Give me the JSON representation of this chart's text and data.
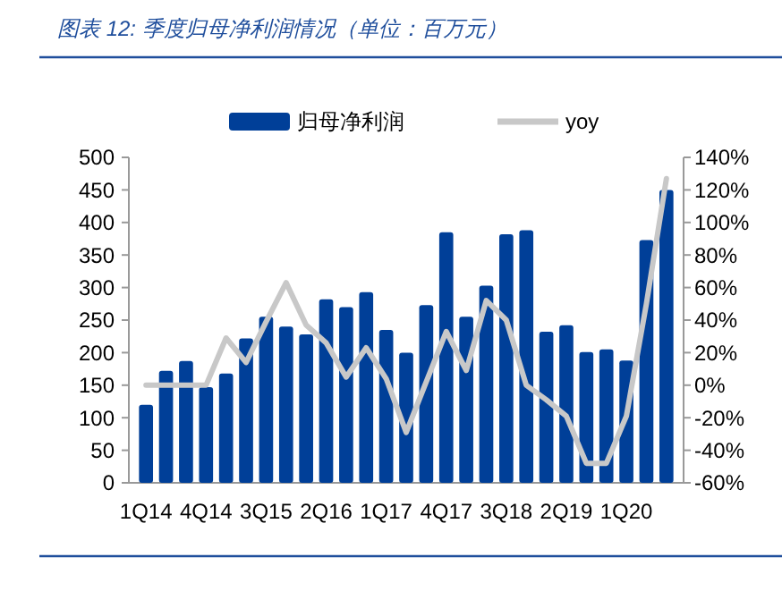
{
  "chart_data": {
    "type": "bar",
    "title": "图表 12: 季度归母净利润情况（单位：百万元）",
    "categories": [
      "1Q14",
      null,
      null,
      "4Q14",
      null,
      null,
      "3Q15",
      null,
      null,
      "2Q16",
      null,
      null,
      "1Q17",
      null,
      null,
      "4Q17",
      null,
      null,
      "3Q18",
      null,
      null,
      "2Q19",
      null,
      null,
      "1Q20",
      null,
      null
    ],
    "series": [
      {
        "name": "归母净利润",
        "color": "#003f98",
        "values": [
          120,
          172,
          187,
          147,
          168,
          222,
          255,
          240,
          228,
          282,
          270,
          293,
          235,
          200,
          273,
          385,
          255,
          303,
          382,
          388,
          232,
          242,
          201,
          205,
          188,
          373,
          450
        ]
      },
      {
        "name": "yoy",
        "type": "line",
        "axis": "y2",
        "color": "#c8c8c8",
        "values": [
          0,
          0,
          0,
          0,
          29,
          14,
          39,
          63,
          37,
          26,
          5,
          23,
          4,
          -29,
          2,
          33,
          9,
          52,
          40,
          0,
          -9,
          -19,
          -48,
          -48,
          -19,
          50,
          127
        ]
      }
    ],
    "ylim": [
      0,
      500
    ],
    "yticks": [
      0,
      50,
      100,
      150,
      200,
      250,
      300,
      350,
      400,
      450,
      500
    ],
    "y2lim": [
      -60,
      140
    ],
    "y2ticks": [
      {
        "value": -60,
        "label": "-60%"
      },
      {
        "value": -40,
        "label": "-40%"
      },
      {
        "value": -20,
        "label": "-20%"
      },
      {
        "value": 0,
        "label": "0%"
      },
      {
        "value": 20,
        "label": "20%"
      },
      {
        "value": 40,
        "label": "40%"
      },
      {
        "value": 60,
        "label": "60%"
      },
      {
        "value": 80,
        "label": "80%"
      },
      {
        "value": 100,
        "label": "100%"
      },
      {
        "value": 120,
        "label": "120%"
      },
      {
        "value": 140,
        "label": "140%"
      }
    ],
    "legend": "top",
    "grid": false
  }
}
